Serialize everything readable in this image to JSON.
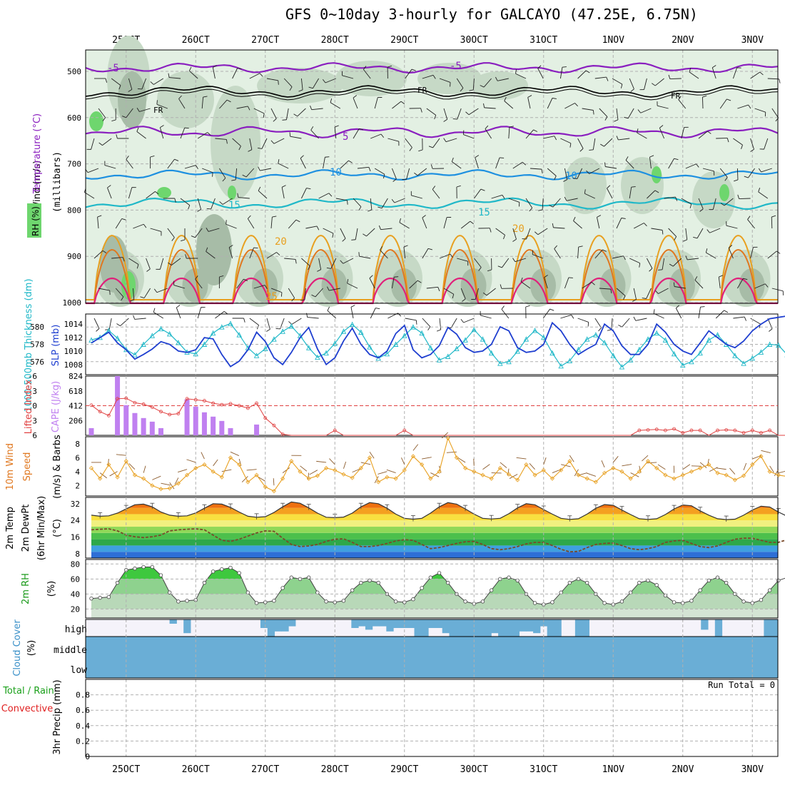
{
  "title": "GFS 0~10day 3-hourly for GALCAYO (47.25E, 6.75N)",
  "dates": [
    "25OCT",
    "26OCT",
    "27OCT",
    "28OCT",
    "29OCT",
    "30OCT",
    "31OCT",
    "1NOV",
    "2NOV",
    "3NOV"
  ],
  "colors": {
    "grid": "#b0b0b0",
    "rh_light": "#e3f0e3",
    "rh_mid": "#c6d9c6",
    "rh_dark": "#a7bca7",
    "rh_bright": "#6ed66e",
    "temp_purple": "#8a1fbf",
    "temp_blue": "#1e90e0",
    "temp_cyan": "#20b8c8",
    "temp_orange": "#e8a020",
    "temp_darkorange": "#e07820",
    "temp_magenta": "#e0207a",
    "thickness": "#20b8c8",
    "slp": "#1f3fd0",
    "cape": "#c080f0",
    "lifted": "#e04040",
    "wind": "#e8a020",
    "barb": "#8b5a2b",
    "rh2m": "#22cc22",
    "cloud": "#6aaed6",
    "cloud_bg": "#f5f3fa"
  },
  "panels": {
    "upper": {
      "ylabel_wind": "Wind (m/s)",
      "ylabel_temp": "Temperature (°C)",
      "ylabel_rh": "RH (%)",
      "ylabel_mb": "(millibars)",
      "yticks": [
        "500",
        "600",
        "700",
        "800",
        "900",
        "1000"
      ],
      "contour_labels": {
        "purple": [
          "-5",
          "-5",
          "5"
        ],
        "freeze": [
          "FR",
          "FR",
          "FR"
        ],
        "blue": [
          "10",
          "10"
        ],
        "cyan": [
          "15",
          "15"
        ],
        "orange": [
          "20",
          "20"
        ],
        "darkorange": [
          "25"
        ],
        "rh": [
          "30",
          "30",
          "50",
          "50",
          "70",
          "90",
          "10",
          "10",
          "50",
          "30"
        ]
      }
    },
    "thickness": {
      "ylabel_left": "1000-500mb Thickness (dm)",
      "ylabel_right": "SLP (mb)",
      "left_ticks": [
        "580",
        "578",
        "576"
      ],
      "right_ticks": [
        "1014",
        "1012",
        "1010",
        "1008"
      ]
    },
    "cape": {
      "ylabel_left": "Lifted Index",
      "ylabel_right": "CAPE (J/kg)",
      "left_ticks": [
        "-6",
        "-3",
        "0",
        "3",
        "6"
      ],
      "right_ticks": [
        "824",
        "618",
        "412",
        "206"
      ]
    },
    "wind10m": {
      "ylabel1": "10m Wind",
      "ylabel2": "Speed",
      "ylabel3": "(m/s) & Barbs",
      "ticks": [
        "8",
        "6",
        "4",
        "2"
      ]
    },
    "temp2m": {
      "ylabel1": "2m Temp",
      "ylabel2": "2m DewPt",
      "ylabel3": "(6hr Min/Max)",
      "unit": "(°C)",
      "ticks": [
        "32",
        "24",
        "16",
        "8"
      ]
    },
    "rh2m": {
      "ylabel": "2m RH",
      "unit": "(%)",
      "ticks": [
        "80",
        "60",
        "40",
        "20"
      ]
    },
    "cloud": {
      "ylabel": "Cloud Cover",
      "unit": "(%)",
      "levels": [
        "high",
        "middle",
        "low"
      ]
    },
    "precip": {
      "ylabel1": "Total / Rain",
      "ylabel2": "Convective",
      "ylabel3": "3hr Precip (mm)",
      "ticks": [
        "0.8",
        "0.6",
        "0.4",
        "0.2",
        "0"
      ],
      "run_total": "Run Total = 0"
    }
  },
  "chart_data": [
    {
      "type": "line",
      "title": "1000-500mb Thickness (dm) / SLP (mb)",
      "x_unit": "3-hourly steps from 25OCT",
      "series": [
        {
          "name": "1000-500mb Thickness (dm)",
          "values": [
            578.5,
            578.8,
            579.6,
            578.7,
            577.4,
            576.8,
            578.0,
            579.0,
            579.8,
            579.2,
            578.2,
            577.1,
            576.9,
            578.0,
            579.3,
            580.0,
            580.4,
            579.1,
            577.6,
            576.7,
            577.5,
            578.6,
            579.5,
            580.1,
            579.0,
            577.6,
            576.5,
            577.0,
            578.1,
            579.5,
            580.3,
            579.4,
            577.7,
            576.4,
            576.9,
            578.0,
            579.0,
            580.0,
            579.3,
            577.6,
            576.2,
            576.6,
            577.5,
            578.5,
            579.7,
            578.6,
            577.0,
            575.8,
            576.0,
            577.2,
            578.6,
            579.6,
            578.8,
            577.0,
            575.5,
            576.1,
            577.4,
            578.6,
            579.1,
            578.2,
            576.7,
            575.4,
            576.2,
            577.4,
            578.6,
            579.3,
            578.5,
            576.9,
            575.6,
            576.0,
            577.0,
            578.5,
            579.1,
            578.0,
            576.7,
            575.8,
            576.4,
            577.1,
            578.0,
            577.9,
            576.8
          ]
        },
        {
          "name": "SLP (mb)",
          "values": [
            1011.2,
            1012.0,
            1012.8,
            1011.2,
            1010.2,
            1008.8,
            1009.5,
            1010.3,
            1011.4,
            1011.0,
            1010.0,
            1009.8,
            1010.2,
            1012.0,
            1011.8,
            1009.5,
            1007.7,
            1008.5,
            1010.2,
            1012.8,
            1011.4,
            1009.0,
            1008.0,
            1009.8,
            1012.0,
            1013.5,
            1010.3,
            1008.0,
            1009.0,
            1011.5,
            1013.4,
            1011.0,
            1009.5,
            1009.0,
            1010.0,
            1012.6,
            1013.8,
            1010.2,
            1009.0,
            1009.5,
            1010.8,
            1013.5,
            1012.5,
            1010.5,
            1009.8,
            1010.0,
            1011.0,
            1013.6,
            1013.0,
            1010.5,
            1009.8,
            1010.0,
            1011.0,
            1014.2,
            1013.0,
            1011.0,
            1009.5,
            1010.3,
            1011.0,
            1014.0,
            1013.0,
            1010.8,
            1009.5,
            1009.5,
            1011.0,
            1014.0,
            1012.8,
            1011.0,
            1010.0,
            1009.5,
            1011.2,
            1013.0,
            1012.0,
            1011.0,
            1010.5,
            1011.5,
            1013.0,
            1014.0,
            1014.8,
            1015.0,
            1015.2
          ]
        }
      ],
      "ylim_thickness": [
        574.5,
        581.5
      ],
      "ylim_slp": [
        1006.5,
        1015.5
      ]
    },
    {
      "type": "bar",
      "title": "Lifted Index / CAPE (J/kg)",
      "cape_bars": [
        {
          "x": 0,
          "value": 100
        },
        {
          "x": 3,
          "value": 824
        },
        {
          "x": 4,
          "value": 420
        },
        {
          "x": 5,
          "value": 310
        },
        {
          "x": 6,
          "value": 240
        },
        {
          "x": 7,
          "value": 190
        },
        {
          "x": 8,
          "value": 100
        },
        {
          "x": 11,
          "value": 500
        },
        {
          "x": 12,
          "value": 400
        },
        {
          "x": 13,
          "value": 320
        },
        {
          "x": 14,
          "value": 260
        },
        {
          "x": 15,
          "value": 200
        },
        {
          "x": 16,
          "value": 100
        },
        {
          "x": 19,
          "value": 150
        }
      ],
      "lifted_index": [
        -0.1,
        1.2,
        2.0,
        -1.4,
        -1.5,
        -0.6,
        -0.3,
        0.3,
        1.2,
        1.8,
        1.6,
        -1.4,
        -1.2,
        -1.0,
        -0.5,
        -0.2,
        -0.4,
        0.0,
        0.5,
        -0.5,
        2.5,
        4.0,
        5.8,
        6.0,
        6.0,
        6.0,
        6.0,
        6.0,
        5.0,
        6.0,
        6.0,
        6.0,
        6.0,
        6.0,
        6.0,
        6.0,
        5.0,
        6.0,
        6.0,
        6.0,
        6.0,
        6.0,
        6.0,
        6.0,
        6.0,
        6.0,
        6.0,
        6.0,
        6.0,
        6.0,
        6.0,
        6.0,
        6.0,
        6.0,
        6.0,
        6.0,
        6.0,
        6.0,
        6.0,
        6.0,
        6.0,
        6.0,
        6.0,
        5.0,
        4.9,
        4.8,
        5.0,
        4.7,
        5.5,
        5.0,
        5.0,
        6.0,
        5.0,
        4.9,
        5.0,
        5.5,
        5.0,
        5.5,
        5.0,
        6.0,
        6.0
      ],
      "li_range": [
        -6,
        6
      ],
      "cape_range": [
        0,
        824
      ]
    },
    {
      "type": "line",
      "title": "10m Wind Speed (m/s)",
      "values": [
        4.5,
        3.0,
        5.0,
        3.2,
        5.5,
        3.5,
        3.0,
        2.0,
        1.5,
        1.6,
        2.3,
        3.5,
        4.5,
        5.0,
        4.0,
        3.2,
        6.0,
        5.0,
        2.5,
        3.5,
        1.8,
        1.2,
        3.0,
        5.5,
        4.0,
        3.0,
        3.4,
        4.5,
        4.2,
        3.6,
        3.1,
        4.5,
        6.0,
        2.5,
        3.2,
        3.0,
        4.2,
        6.2,
        5.0,
        3.0,
        4.0,
        8.8,
        6.0,
        4.5,
        4.0,
        3.5,
        3.0,
        4.5,
        3.6,
        2.8,
        5.0,
        3.5,
        4.2,
        3.0,
        4.2,
        5.5,
        3.5,
        3.0,
        2.5,
        3.8,
        4.5,
        4.0,
        3.0,
        4.0,
        5.5,
        4.5,
        3.5,
        3.0,
        3.5,
        4.0,
        4.5,
        5.0,
        3.8,
        3.5,
        2.8,
        3.4,
        5.0,
        6.2,
        4.0,
        3.5,
        3.3
      ],
      "ylim": [
        0.5,
        9
      ]
    },
    {
      "type": "area",
      "title": "2m Temp / 2m DewPt (°C)",
      "temp": [
        26.5,
        26,
        26.2,
        27.5,
        29.5,
        31.5,
        31.8,
        30.5,
        28,
        26.5,
        26,
        26.2,
        27.6,
        29.8,
        32.0,
        31.8,
        30.2,
        28,
        26,
        25.5,
        25.8,
        27.8,
        30.5,
        32.8,
        32.2,
        30,
        27.5,
        25.5,
        25.3,
        25.6,
        27.5,
        30.5,
        32.5,
        32.0,
        29.8,
        27,
        25,
        24.6,
        25.0,
        27.5,
        30.5,
        32.5,
        31.8,
        29.5,
        27,
        25,
        24.7,
        25.0,
        27.2,
        30,
        32.0,
        31.5,
        29.2,
        27,
        25,
        24.5,
        24.8,
        27.0,
        29.8,
        31.6,
        31.2,
        29,
        26.8,
        24.8,
        24.5,
        24.8,
        26.8,
        29.5,
        31.4,
        31.0,
        28.6,
        26.5,
        24.8,
        24.4,
        24.6,
        26.5,
        29.0,
        30.8,
        30.4,
        28,
        26.0,
        24.5,
        24.3,
        24.5,
        26.5,
        28.0
      ],
      "dewpt": [
        19.5,
        19.8,
        20.0,
        19.0,
        17.0,
        16.2,
        15.8,
        16.2,
        17.0,
        19.0,
        19.5,
        19.8,
        20.0,
        19.5,
        17.0,
        14.5,
        14.0,
        15.0,
        16.5,
        18.0,
        19.0,
        18.8,
        15.5,
        12.5,
        11.5,
        11.8,
        12.5,
        14.0,
        15.0,
        15.2,
        13.5,
        11.5,
        11.5,
        12.0,
        13.0,
        14.2,
        14.8,
        14.5,
        12.5,
        10.5,
        11.0,
        12.0,
        13.0,
        13.8,
        14.0,
        12.5,
        10.5,
        10.0,
        10.5,
        11.5,
        12.8,
        13.5,
        13.5,
        12.0,
        10.2,
        9.0,
        9.2,
        11.0,
        12.5,
        13.0,
        13.2,
        12.0,
        10.5,
        10.0,
        10.5,
        11.5,
        13.5,
        14.2,
        14.5,
        13.0,
        11.5,
        11.0,
        11.8,
        13.5,
        15.0,
        15.5,
        15.5,
        14.5,
        13.5,
        13.5,
        14.8,
        15.5,
        15.5,
        14.0,
        13.5,
        13.5
      ],
      "ylim": [
        6,
        35
      ]
    },
    {
      "type": "area",
      "title": "2m RH (%)",
      "values": [
        34,
        35,
        36,
        55,
        72,
        74,
        76,
        76,
        65,
        42,
        30,
        31,
        32,
        55,
        70,
        73,
        75,
        68,
        42,
        28,
        29,
        31,
        48,
        62,
        60,
        62,
        42,
        30,
        29,
        31,
        45,
        55,
        58,
        55,
        40,
        30,
        29,
        33,
        48,
        62,
        68,
        55,
        40,
        30,
        27,
        30,
        45,
        60,
        62,
        58,
        40,
        28,
        26,
        29,
        42,
        55,
        60,
        55,
        40,
        28,
        26,
        30,
        42,
        55,
        58,
        52,
        38,
        29,
        28,
        31,
        45,
        58,
        62,
        55,
        40,
        30,
        28,
        32,
        45,
        58,
        62,
        55,
        40,
        30,
        29,
        30,
        45,
        58,
        62,
        60,
        40
      ],
      "ylim": [
        8,
        86
      ]
    },
    {
      "type": "bar",
      "title": "Cloud Cover (%) high",
      "high": [
        0,
        0,
        0,
        0,
        0,
        0,
        0,
        0,
        0,
        0,
        0,
        0,
        25,
        0,
        80,
        0,
        0,
        0,
        0,
        0,
        0,
        0,
        0,
        0,
        0,
        50,
        100,
        70,
        70,
        40,
        0,
        0,
        0,
        0,
        0,
        0,
        0,
        0,
        50,
        40,
        60,
        40,
        40,
        70,
        50,
        50,
        50,
        100,
        100,
        50,
        50,
        80,
        100,
        100,
        100,
        100,
        100,
        100,
        80,
        100,
        100,
        100,
        70,
        70,
        80,
        40,
        100,
        100,
        0,
        0,
        100,
        100,
        0,
        0,
        0,
        0,
        0,
        0,
        0,
        0,
        0,
        0,
        0,
        0,
        0,
        0,
        0,
        0,
        60,
        0,
        100,
        0,
        0,
        0,
        0,
        0,
        0,
        100,
        100
      ],
      "middle": 100,
      "low": 100
    },
    {
      "type": "bar",
      "title": "3hr Precip (mm)",
      "values": [],
      "ylim": [
        0,
        1.0
      ]
    }
  ]
}
